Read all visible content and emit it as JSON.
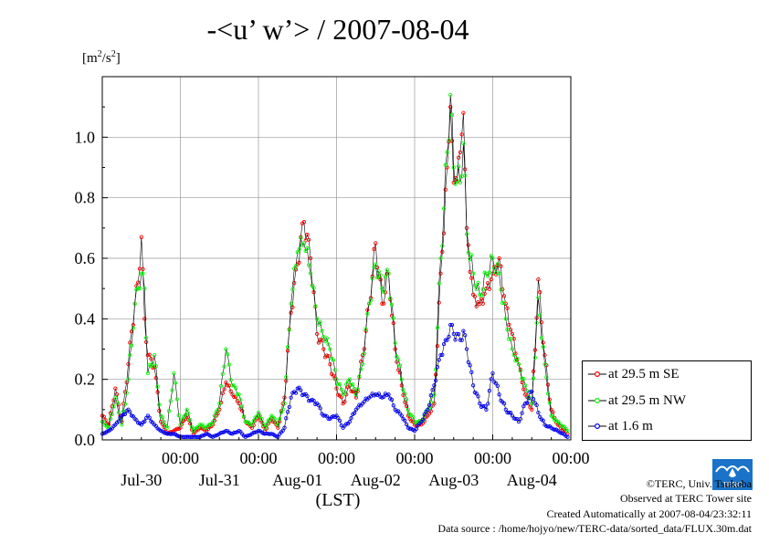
{
  "chart_data": {
    "type": "line",
    "title": "-<u’ w’> / 2007-08-04",
    "ylabel": "[m2/s2]",
    "xlabel": "(LST)",
    "ylim": [
      0,
      1.2
    ],
    "xlim": [
      0,
      144
    ],
    "grid": true,
    "y_ticks": [
      "0.0",
      "0.2",
      "0.4",
      "0.6",
      "0.8",
      "1.0"
    ],
    "x_ticks": [
      {
        "time": "00:00",
        "date": "Jul-30"
      },
      {
        "time": "00:00",
        "date": "Jul-31"
      },
      {
        "time": "00:00",
        "date": "Aug-01"
      },
      {
        "time": "00:00",
        "date": "Aug-02"
      },
      {
        "time": "00:00",
        "date": "Aug-03"
      },
      {
        "time": "00:00",
        "date": "Aug-04"
      }
    ],
    "x_unit": "hours since Jul-29 00:00 (LST)",
    "legend_position": "right",
    "series": [
      {
        "name": "at 29.5 m SE",
        "color": "#ff0000",
        "points": [
          [
            0,
            0.08
          ],
          [
            2,
            0.05
          ],
          [
            4,
            0.17
          ],
          [
            6,
            0.06
          ],
          [
            8,
            0.25
          ],
          [
            10,
            0.45
          ],
          [
            11,
            0.52
          ],
          [
            12,
            0.67
          ],
          [
            13,
            0.4
          ],
          [
            14,
            0.28
          ],
          [
            16,
            0.24
          ],
          [
            18,
            0.06
          ],
          [
            20,
            0.02
          ],
          [
            22,
            0.03
          ],
          [
            24,
            0.04
          ],
          [
            26,
            0.08
          ],
          [
            28,
            0.02
          ],
          [
            30,
            0.04
          ],
          [
            32,
            0.03
          ],
          [
            34,
            0.05
          ],
          [
            36,
            0.1
          ],
          [
            38,
            0.19
          ],
          [
            40,
            0.15
          ],
          [
            42,
            0.12
          ],
          [
            44,
            0.06
          ],
          [
            46,
            0.04
          ],
          [
            48,
            0.08
          ],
          [
            50,
            0.03
          ],
          [
            52,
            0.07
          ],
          [
            54,
            0.04
          ],
          [
            56,
            0.14
          ],
          [
            58,
            0.42
          ],
          [
            60,
            0.58
          ],
          [
            62,
            0.72
          ],
          [
            64,
            0.6
          ],
          [
            66,
            0.35
          ],
          [
            68,
            0.3
          ],
          [
            70,
            0.25
          ],
          [
            72,
            0.17
          ],
          [
            74,
            0.12
          ],
          [
            76,
            0.18
          ],
          [
            78,
            0.14
          ],
          [
            80,
            0.28
          ],
          [
            82,
            0.45
          ],
          [
            84,
            0.65
          ],
          [
            86,
            0.45
          ],
          [
            88,
            0.55
          ],
          [
            90,
            0.3
          ],
          [
            92,
            0.18
          ],
          [
            94,
            0.08
          ],
          [
            96,
            0.05
          ],
          [
            98,
            0.05
          ],
          [
            100,
            0.08
          ],
          [
            102,
            0.12
          ],
          [
            104,
            0.55
          ],
          [
            106,
            0.9
          ],
          [
            107,
            1.1
          ],
          [
            108,
            0.85
          ],
          [
            110,
            0.95
          ],
          [
            111,
            1.08
          ],
          [
            112,
            0.7
          ],
          [
            114,
            0.48
          ],
          [
            116,
            0.45
          ],
          [
            118,
            0.5
          ],
          [
            120,
            0.55
          ],
          [
            122,
            0.6
          ],
          [
            124,
            0.45
          ],
          [
            126,
            0.35
          ],
          [
            128,
            0.25
          ],
          [
            130,
            0.15
          ],
          [
            132,
            0.1
          ],
          [
            134,
            0.53
          ],
          [
            136,
            0.28
          ],
          [
            138,
            0.1
          ],
          [
            140,
            0.05
          ],
          [
            143,
            0.02
          ]
        ]
      },
      {
        "name": "at 29.5 m NW",
        "color": "#00ff00",
        "points": [
          [
            0,
            0.06
          ],
          [
            2,
            0.04
          ],
          [
            4,
            0.14
          ],
          [
            6,
            0.05
          ],
          [
            8,
            0.2
          ],
          [
            10,
            0.45
          ],
          [
            11,
            0.5
          ],
          [
            12,
            0.55
          ],
          [
            13,
            0.5
          ],
          [
            14,
            0.22
          ],
          [
            16,
            0.28
          ],
          [
            18,
            0.08
          ],
          [
            20,
            0.04
          ],
          [
            22,
            0.22
          ],
          [
            24,
            0.05
          ],
          [
            26,
            0.1
          ],
          [
            28,
            0.03
          ],
          [
            30,
            0.05
          ],
          [
            32,
            0.04
          ],
          [
            34,
            0.06
          ],
          [
            36,
            0.12
          ],
          [
            38,
            0.3
          ],
          [
            40,
            0.18
          ],
          [
            42,
            0.15
          ],
          [
            44,
            0.06
          ],
          [
            46,
            0.05
          ],
          [
            48,
            0.09
          ],
          [
            50,
            0.04
          ],
          [
            52,
            0.08
          ],
          [
            54,
            0.05
          ],
          [
            56,
            0.12
          ],
          [
            58,
            0.45
          ],
          [
            60,
            0.62
          ],
          [
            62,
            0.65
          ],
          [
            64,
            0.55
          ],
          [
            66,
            0.4
          ],
          [
            68,
            0.34
          ],
          [
            70,
            0.3
          ],
          [
            72,
            0.2
          ],
          [
            74,
            0.15
          ],
          [
            76,
            0.2
          ],
          [
            78,
            0.15
          ],
          [
            80,
            0.25
          ],
          [
            82,
            0.45
          ],
          [
            84,
            0.58
          ],
          [
            86,
            0.5
          ],
          [
            88,
            0.55
          ],
          [
            90,
            0.32
          ],
          [
            92,
            0.2
          ],
          [
            94,
            0.1
          ],
          [
            96,
            0.06
          ],
          [
            98,
            0.06
          ],
          [
            100,
            0.1
          ],
          [
            102,
            0.15
          ],
          [
            104,
            0.6
          ],
          [
            106,
            0.95
          ],
          [
            107,
            1.14
          ],
          [
            108,
            0.9
          ],
          [
            110,
            0.85
          ],
          [
            111,
            0.98
          ],
          [
            112,
            0.68
          ],
          [
            114,
            0.55
          ],
          [
            116,
            0.48
          ],
          [
            118,
            0.55
          ],
          [
            120,
            0.6
          ],
          [
            122,
            0.55
          ],
          [
            124,
            0.4
          ],
          [
            126,
            0.3
          ],
          [
            128,
            0.25
          ],
          [
            130,
            0.18
          ],
          [
            132,
            0.12
          ],
          [
            134,
            0.47
          ],
          [
            136,
            0.25
          ],
          [
            138,
            0.08
          ],
          [
            140,
            0.06
          ],
          [
            143,
            0.03
          ]
        ]
      },
      {
        "name": "at 1.6 m",
        "color": "#0000ff",
        "points": [
          [
            0,
            0.02
          ],
          [
            2,
            0.03
          ],
          [
            4,
            0.05
          ],
          [
            6,
            0.08
          ],
          [
            8,
            0.1
          ],
          [
            10,
            0.07
          ],
          [
            12,
            0.05
          ],
          [
            14,
            0.08
          ],
          [
            16,
            0.05
          ],
          [
            18,
            0.03
          ],
          [
            20,
            0.02
          ],
          [
            22,
            0.02
          ],
          [
            24,
            0.01
          ],
          [
            26,
            0.01
          ],
          [
            28,
            0.01
          ],
          [
            30,
            0.01
          ],
          [
            32,
            0.02
          ],
          [
            34,
            0.01
          ],
          [
            36,
            0.02
          ],
          [
            38,
            0.03
          ],
          [
            40,
            0.02
          ],
          [
            42,
            0.03
          ],
          [
            44,
            0.01
          ],
          [
            46,
            0.02
          ],
          [
            48,
            0.03
          ],
          [
            50,
            0.02
          ],
          [
            52,
            0.02
          ],
          [
            54,
            0.01
          ],
          [
            56,
            0.04
          ],
          [
            58,
            0.14
          ],
          [
            60,
            0.17
          ],
          [
            62,
            0.15
          ],
          [
            64,
            0.13
          ],
          [
            66,
            0.12
          ],
          [
            68,
            0.08
          ],
          [
            70,
            0.07
          ],
          [
            72,
            0.08
          ],
          [
            74,
            0.04
          ],
          [
            76,
            0.06
          ],
          [
            78,
            0.1
          ],
          [
            80,
            0.12
          ],
          [
            82,
            0.14
          ],
          [
            84,
            0.15
          ],
          [
            86,
            0.14
          ],
          [
            88,
            0.15
          ],
          [
            90,
            0.1
          ],
          [
            92,
            0.08
          ],
          [
            94,
            0.04
          ],
          [
            96,
            0.03
          ],
          [
            98,
            0.06
          ],
          [
            100,
            0.1
          ],
          [
            102,
            0.18
          ],
          [
            104,
            0.28
          ],
          [
            106,
            0.33
          ],
          [
            107,
            0.38
          ],
          [
            108,
            0.35
          ],
          [
            110,
            0.33
          ],
          [
            111,
            0.36
          ],
          [
            112,
            0.3
          ],
          [
            114,
            0.18
          ],
          [
            116,
            0.12
          ],
          [
            118,
            0.1
          ],
          [
            120,
            0.22
          ],
          [
            122,
            0.15
          ],
          [
            124,
            0.1
          ],
          [
            126,
            0.08
          ],
          [
            128,
            0.06
          ],
          [
            130,
            0.12
          ],
          [
            132,
            0.16
          ],
          [
            134,
            0.09
          ],
          [
            136,
            0.05
          ],
          [
            138,
            0.04
          ],
          [
            140,
            0.03
          ],
          [
            143,
            0.01
          ]
        ]
      }
    ]
  },
  "footer": {
    "copyright": "©TERC, Univ. Tsukuba",
    "observed": "Observed at TERC Tower site",
    "created": "Created Automatically at 2007-08-04/23:32:11",
    "source": "Data source : /home/hojyo/new/TERC-data/sorted_data/FLUX.30m.dat"
  },
  "logo": {
    "text": "TERC",
    "color": "#1a73c8"
  }
}
